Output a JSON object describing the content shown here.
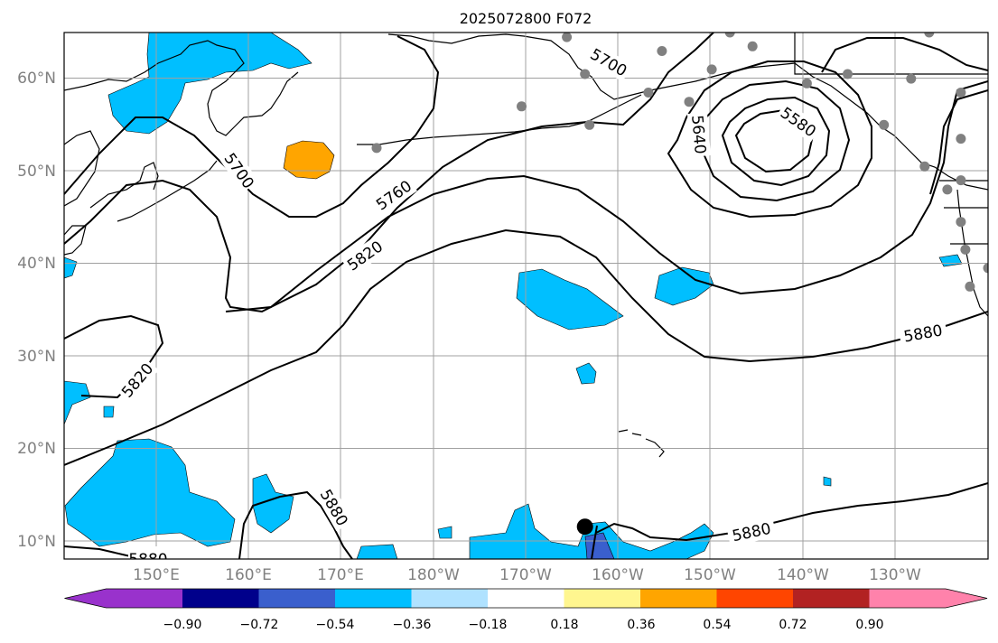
{
  "title": "2025072800 F072",
  "map": {
    "projection": "PlateCarree",
    "lon_range": [
      140,
      242
    ],
    "lat_range": [
      8,
      65
    ],
    "gridline_color": "#a0a0a0",
    "lat_ticks": [
      "10°N",
      "20°N",
      "30°N",
      "40°N",
      "50°N",
      "60°N"
    ],
    "lon_ticks": [
      "150°E",
      "160°E",
      "170°E",
      "180°W",
      "170°W",
      "160°W",
      "150°W",
      "140°W",
      "130°W"
    ],
    "contour_labels": [
      "5700",
      "5760",
      "5820",
      "5580",
      "5640",
      "5700",
      "5880",
      "5820",
      "5880",
      "5880",
      "5880"
    ],
    "point_marker": {
      "name": "black-dot",
      "lon": 197.5,
      "lat": 11.5,
      "color": "#000000"
    },
    "station_marker_color": "#808080",
    "station_markers": [
      {
        "lon": 174.5,
        "lat": 52.5
      },
      {
        "lon": 190.5,
        "lat": 57.0
      },
      {
        "lon": 195.5,
        "lat": 64.5
      },
      {
        "lon": 197.5,
        "lat": 60.5
      },
      {
        "lon": 198.0,
        "lat": 55.0
      },
      {
        "lon": 204.5,
        "lat": 58.5
      },
      {
        "lon": 206.0,
        "lat": 63.0
      },
      {
        "lon": 209.0,
        "lat": 57.5
      },
      {
        "lon": 211.5,
        "lat": 61.0
      },
      {
        "lon": 213.5,
        "lat": 65.0
      },
      {
        "lon": 216.0,
        "lat": 63.5
      },
      {
        "lon": 222.0,
        "lat": 59.5
      },
      {
        "lon": 226.5,
        "lat": 60.5
      },
      {
        "lon": 230.5,
        "lat": 55.0
      },
      {
        "lon": 233.5,
        "lat": 60.0
      },
      {
        "lon": 235.0,
        "lat": 50.5
      },
      {
        "lon": 235.5,
        "lat": 65.0
      },
      {
        "lon": 237.5,
        "lat": 48.0
      },
      {
        "lon": 239.0,
        "lat": 49.0
      },
      {
        "lon": 239.0,
        "lat": 44.5
      },
      {
        "lon": 239.5,
        "lat": 41.5
      },
      {
        "lon": 239.0,
        "lat": 58.5
      },
      {
        "lon": 239.0,
        "lat": 53.5
      },
      {
        "lon": 240.0,
        "lat": 37.5
      },
      {
        "lon": 242.0,
        "lat": 39.5
      }
    ]
  },
  "colorbar": {
    "extend": "both",
    "colors": [
      "#9932cc",
      "#00008b",
      "#3a5fcd",
      "#00bfff",
      "#b0e2ff",
      "#ffffff",
      "#fff68f",
      "#ffa500",
      "#ff4500",
      "#b22222",
      "#ff82ab"
    ],
    "tick_labels": [
      "−0.90",
      "−0.72",
      "−0.54",
      "−0.36",
      "−0.18",
      "0.18",
      "0.36",
      "0.54",
      "0.72",
      "0.90"
    ]
  },
  "chart_data": {
    "type": "heatmap",
    "title": "2025072800 F072",
    "contour_levels": [
      5580,
      5640,
      5700,
      5760,
      5820,
      5880
    ],
    "levels": [
      -0.9,
      -0.72,
      -0.54,
      -0.36,
      -0.18,
      0.18,
      0.36,
      0.54,
      0.72,
      0.9
    ],
    "xlim": [
      140,
      242
    ],
    "ylim": [
      8,
      65
    ],
    "legend": "colorbar-bottom"
  }
}
